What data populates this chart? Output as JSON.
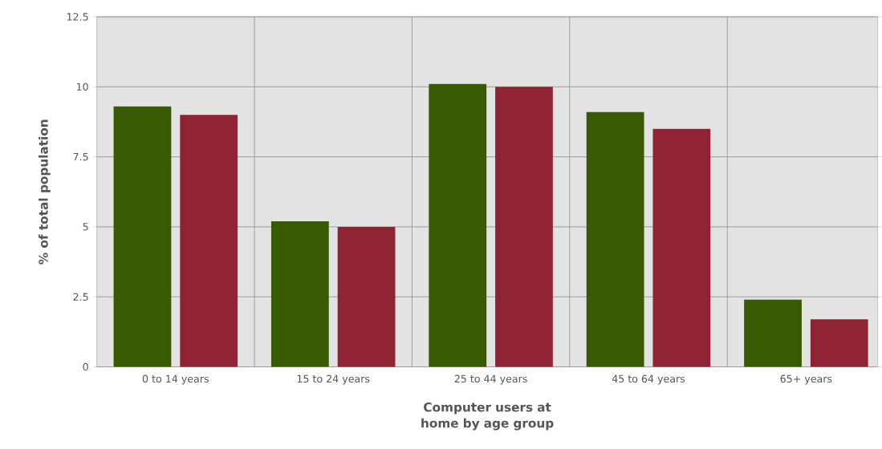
{
  "chart_data": {
    "type": "bar",
    "xlabel": "Computer users at home by age group",
    "ylabel": "% of total population",
    "categories": [
      "0 to 14 years",
      "15 to 24 years",
      "25 to 44 years",
      "45 to 64 years",
      "65+ years"
    ],
    "series": [
      {
        "color": "#385a00",
        "values": [
          9.3,
          5.2,
          10.1,
          9.1,
          2.4
        ]
      },
      {
        "color": "#8e2433",
        "values": [
          9.0,
          5.0,
          10.0,
          8.5,
          1.7
        ]
      }
    ],
    "ylim": [
      0,
      12.5
    ],
    "yticks": [
      0,
      2.5,
      5,
      7.5,
      10,
      12.5
    ],
    "grid": true
  }
}
